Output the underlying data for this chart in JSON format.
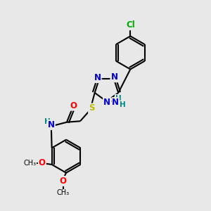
{
  "background_color": "#e8e8e8",
  "atom_colors": {
    "C": "#000000",
    "N": "#0000cc",
    "O": "#ff0000",
    "S": "#bbbb00",
    "Cl": "#00aa00",
    "H": "#008888"
  },
  "bond_color": "#000000",
  "bond_width": 1.5,
  "font_size_atom": 8.5,
  "font_size_small": 7.5
}
